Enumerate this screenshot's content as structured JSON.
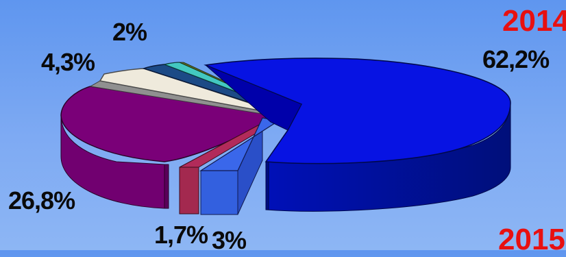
{
  "chart_data": {
    "type": "pie",
    "labels": [
      "2014",
      "2015"
    ],
    "slices": [
      {
        "value": 62.2,
        "label": "62,2%",
        "color": "#0a17e6"
      },
      {
        "value": 3,
        "label": "3%",
        "color": "#2f5ce0"
      },
      {
        "value": 1.7,
        "label": "1,7%",
        "color": "#a3294f"
      },
      {
        "value": 26.8,
        "label": "26,8%",
        "color": "#740070"
      },
      {
        "value": 4.3,
        "label": "4,3%",
        "color": "#ebe6d8"
      },
      {
        "value": 2,
        "label": "2%",
        "color": "#1a4a88"
      },
      {
        "value": 1.0,
        "label": "",
        "color": "#3ec7c0"
      }
    ]
  }
}
